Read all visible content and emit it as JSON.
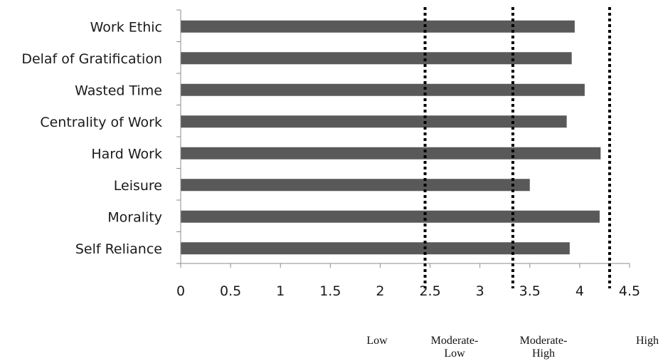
{
  "chart_data": {
    "type": "bar",
    "orientation": "horizontal",
    "categories": [
      "Work Ethic",
      "Delaf of Gratification",
      "Wasted Time",
      "Centrality of Work",
      "Hard Work",
      "Leisure",
      "Morality",
      "Self Reliance"
    ],
    "values": [
      3.95,
      3.92,
      4.05,
      3.87,
      4.21,
      3.5,
      4.2,
      3.9
    ],
    "xlim": [
      0,
      4.5
    ],
    "xticks": [
      "0",
      "0.5",
      "1",
      "1.5",
      "2",
      "2.5",
      "3",
      "3.5",
      "4",
      "4.5"
    ],
    "grid": false,
    "bar_color": "#595959",
    "thresholds": [
      2.45,
      3.33,
      4.3
    ],
    "bands": [
      {
        "label": "Low"
      },
      {
        "label": "Moderate-\nLow"
      },
      {
        "label": "Moderate-\nHigh"
      },
      {
        "label": "High"
      }
    ]
  }
}
